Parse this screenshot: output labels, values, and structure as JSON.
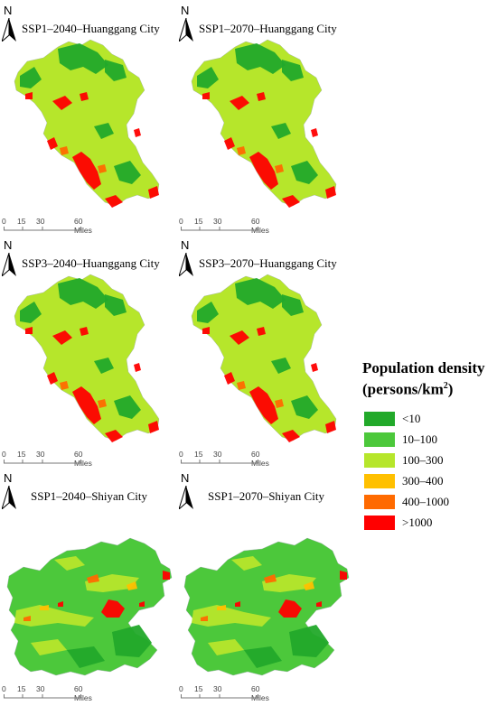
{
  "panels": [
    {
      "title": "SSP1–2040–Huanggang City",
      "north": "N",
      "scale": {
        "t0": "0",
        "t1": "15",
        "t2": "30",
        "t3": "60 Miles"
      },
      "map_icon": "huanggang-map"
    },
    {
      "title": "SSP1–2070–Huanggang City",
      "north": "N",
      "scale": {
        "t0": "0",
        "t1": "15",
        "t2": "30",
        "t3": "60 Miles"
      },
      "map_icon": "huanggang-map"
    },
    {
      "title": "SSP3–2040–Huanggang City",
      "north": "N",
      "scale": {
        "t0": "0",
        "t1": "15",
        "t2": "30",
        "t3": "60 Miles"
      },
      "map_icon": "huanggang-map"
    },
    {
      "title": "SSP3–2070–Huanggang City",
      "north": "N",
      "scale": {
        "t0": "0",
        "t1": "15",
        "t2": "30",
        "t3": "60 Miles"
      },
      "map_icon": "huanggang-map"
    },
    {
      "title": "SSP1–2040–Shiyan City",
      "north": "N",
      "scale": {
        "t0": "0",
        "t1": "15",
        "t2": "30",
        "t3": "60 Miles"
      },
      "map_icon": "shiyan-map"
    },
    {
      "title": "SSP1–2070–Shiyan City",
      "north": "N",
      "scale": {
        "t0": "0",
        "t1": "15",
        "t2": "30",
        "t3": "60 Miles"
      },
      "map_icon": "shiyan-map"
    }
  ],
  "legend": {
    "title_line1": "Population density",
    "title_line2_prefix": "(persons/km",
    "title_sup": "2",
    "title_line2_suffix": ")",
    "items": [
      {
        "label": "<10",
        "color": "#22a92a"
      },
      {
        "label": "10–100",
        "color": "#4cc83b"
      },
      {
        "label": "100–300",
        "color": "#b6e62b"
      },
      {
        "label": "300–400",
        "color": "#ffc000"
      },
      {
        "label": "400–1000",
        "color": "#ff6a00"
      },
      {
        "label": ">1000",
        "color": "#ff0000"
      }
    ]
  },
  "colors": {
    "dark_green": "#22a92a",
    "green": "#4cc83b",
    "light_green": "#b6e62b",
    "yellow": "#ffc000",
    "orange": "#ff6a00",
    "red": "#ff0000"
  }
}
